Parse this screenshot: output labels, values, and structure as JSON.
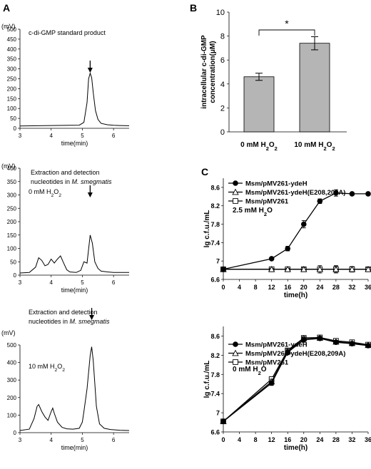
{
  "panels": {
    "A": "A",
    "B": "B",
    "C": "C"
  },
  "chart_data": [
    {
      "id": "chromA1",
      "type": "line",
      "ylabel": "(mV)",
      "xlabel": "time(min)",
      "annotation": "c-di-GMP standard product",
      "xlim": [
        3,
        6.5
      ],
      "ylim": [
        0,
        500
      ],
      "xticks": [
        3,
        4,
        5,
        6
      ],
      "yticks": [
        0,
        50,
        100,
        150,
        200,
        250,
        300,
        350,
        400,
        450,
        500
      ],
      "arrow_x": 5.25,
      "series": [
        {
          "x": [
            3.0,
            4.0,
            4.9,
            5.05,
            5.15,
            5.2,
            5.25,
            5.3,
            5.35,
            5.42,
            5.5,
            5.6,
            5.8,
            6.0,
            6.2,
            6.5
          ],
          "y": [
            12,
            14,
            16,
            30,
            130,
            250,
            278,
            255,
            180,
            90,
            45,
            25,
            18,
            15,
            14,
            13
          ]
        }
      ]
    },
    {
      "id": "chromA2",
      "type": "line",
      "ylabel": "(mV)",
      "xlabel": "time(min)",
      "annotation_lines": [
        "Extraction and detection",
        "nucleotides in"
      ],
      "annotation_italic": "M. smegmatis",
      "condition": "0 mM H",
      "condition_sub": "2",
      "condition_tail": "O",
      "condition_sub2": "2",
      "xlim": [
        3,
        6.5
      ],
      "ylim": [
        0,
        400
      ],
      "xticks": [
        3,
        4,
        5,
        6
      ],
      "yticks": [
        0,
        50,
        100,
        150,
        200,
        250,
        300,
        350,
        400
      ],
      "arrow_x": 5.25,
      "series": [
        {
          "x": [
            3.0,
            3.3,
            3.5,
            3.6,
            3.7,
            3.8,
            3.9,
            4.0,
            4.1,
            4.2,
            4.3,
            4.4,
            4.5,
            4.6,
            4.8,
            4.95,
            5.05,
            5.15,
            5.25,
            5.32,
            5.4,
            5.5,
            5.6,
            5.8,
            6.0,
            6.5
          ],
          "y": [
            8,
            10,
            30,
            65,
            55,
            35,
            40,
            60,
            45,
            60,
            72,
            45,
            20,
            12,
            10,
            18,
            50,
            45,
            150,
            120,
            50,
            25,
            15,
            12,
            10,
            10
          ]
        }
      ]
    },
    {
      "id": "chromA3",
      "type": "line",
      "ylabel": "(mV)",
      "xlabel": "time(min)",
      "annotation_lines": [
        "Extraction and detection",
        "nucleotides in"
      ],
      "annotation_italic": "M. smegmatis",
      "condition": "10 mM H",
      "condition_sub": "2",
      "condition_tail": "O",
      "condition_sub2": "2",
      "xlim": [
        3,
        6.5
      ],
      "ylim": [
        0,
        500
      ],
      "xticks": [
        3,
        4,
        5,
        6
      ],
      "yticks": [
        0,
        100,
        200,
        300,
        400,
        500
      ],
      "arrow_x": 5.3,
      "series": [
        {
          "x": [
            3.0,
            3.3,
            3.45,
            3.55,
            3.6,
            3.7,
            3.8,
            3.9,
            4.0,
            4.05,
            4.1,
            4.2,
            4.35,
            4.5,
            4.7,
            4.9,
            5.0,
            5.05,
            5.15,
            5.25,
            5.3,
            5.35,
            5.45,
            5.55,
            5.7,
            5.9,
            6.2,
            6.5
          ],
          "y": [
            12,
            20,
            80,
            150,
            160,
            120,
            90,
            70,
            120,
            140,
            110,
            60,
            30,
            22,
            20,
            25,
            60,
            120,
            250,
            440,
            490,
            410,
            150,
            50,
            25,
            18,
            14,
            12
          ]
        }
      ]
    },
    {
      "id": "barB",
      "type": "bar",
      "ylabel_lines": [
        "intracellular c-di-GMP",
        "concentration(μM)"
      ],
      "categories": [
        "0 mM H",
        "10 mM H"
      ],
      "category_sub": "2",
      "category_tail": "O",
      "values": [
        4.6,
        7.4
      ],
      "errors": [
        0.3,
        0.55
      ],
      "ylim": [
        0,
        10
      ],
      "yticks": [
        0,
        2,
        4,
        6,
        8,
        10
      ],
      "significance": "*",
      "bar_color": "#b5b5b5"
    },
    {
      "id": "growthC1",
      "type": "line",
      "ylabel": "lg c.f.u./mL",
      "xlabel": "time(h)",
      "condition": "2.5 mM H",
      "condition_sub": "2",
      "condition_tail": "O",
      "xlim": [
        0,
        36
      ],
      "ylim": [
        6.6,
        8.8
      ],
      "xticks": [
        0,
        4,
        8,
        12,
        16,
        20,
        24,
        28,
        32,
        36
      ],
      "yticks": [
        6.6,
        7.0,
        7.4,
        7.8,
        8.2,
        8.6
      ],
      "legend": [
        "Msm/pMV261-ydeH",
        "Msm/pMV261-ydeH(E208,209A)",
        "Msm/pMV261"
      ],
      "series": [
        {
          "marker": "circle-filled",
          "x": [
            0,
            12,
            16,
            20,
            24,
            28,
            32,
            36
          ],
          "y": [
            6.82,
            7.05,
            7.27,
            7.8,
            8.3,
            8.48,
            8.46,
            8.46
          ],
          "err": [
            0,
            0.02,
            0.05,
            0.08,
            0.05,
            0.07,
            0.02,
            0.02
          ]
        },
        {
          "marker": "triangle-open",
          "x": [
            0,
            12,
            16,
            20,
            24,
            28,
            32,
            36
          ],
          "y": [
            6.82,
            6.82,
            6.82,
            6.82,
            6.82,
            6.82,
            6.82,
            6.82
          ],
          "err": [
            0,
            0.02,
            0.02,
            0.04,
            0.08,
            0.08,
            0.06,
            0.04
          ]
        },
        {
          "marker": "square-open",
          "x": [
            0,
            12,
            16,
            20,
            24,
            28,
            32,
            36
          ],
          "y": [
            6.82,
            6.82,
            6.82,
            6.82,
            6.82,
            6.82,
            6.82,
            6.82
          ],
          "err": [
            0,
            0.02,
            0.02,
            0.03,
            0.05,
            0.06,
            0.04,
            0.03
          ]
        }
      ]
    },
    {
      "id": "growthC2",
      "type": "line",
      "ylabel": "lg c.f.u./mL",
      "xlabel": "time(h)",
      "condition": "0 mM H",
      "condition_sub": "2",
      "condition_tail": "O",
      "xlim": [
        0,
        36
      ],
      "ylim": [
        6.6,
        8.8
      ],
      "xticks": [
        0,
        4,
        8,
        12,
        16,
        20,
        24,
        28,
        32,
        36
      ],
      "yticks": [
        6.6,
        7.0,
        7.4,
        7.8,
        8.2,
        8.6
      ],
      "legend": [
        "Msm/pMV261-ydeH",
        "Msm/pMV261-ydeH(E208,209A)",
        "Msm/pMV261"
      ],
      "series": [
        {
          "marker": "circle-filled",
          "x": [
            0,
            12,
            16,
            20,
            24,
            28,
            32,
            36
          ],
          "y": [
            6.82,
            7.62,
            8.26,
            8.52,
            8.55,
            8.47,
            8.44,
            8.4
          ],
          "err": [
            0,
            0.05,
            0.05,
            0.05,
            0.04,
            0.03,
            0.03,
            0.03
          ]
        },
        {
          "marker": "triangle-open",
          "x": [
            0,
            12,
            16,
            20,
            24,
            28,
            32,
            36
          ],
          "y": [
            6.82,
            7.65,
            8.28,
            8.55,
            8.56,
            8.48,
            8.45,
            8.41
          ],
          "err": [
            0,
            0.05,
            0.05,
            0.04,
            0.03,
            0.03,
            0.03,
            0.03
          ]
        },
        {
          "marker": "square-open",
          "x": [
            0,
            12,
            16,
            20,
            24,
            28,
            32,
            36
          ],
          "y": [
            6.82,
            7.7,
            8.3,
            8.56,
            8.57,
            8.5,
            8.47,
            8.42
          ],
          "err": [
            0,
            0.05,
            0.04,
            0.04,
            0.03,
            0.03,
            0.03,
            0.03
          ]
        }
      ]
    }
  ]
}
